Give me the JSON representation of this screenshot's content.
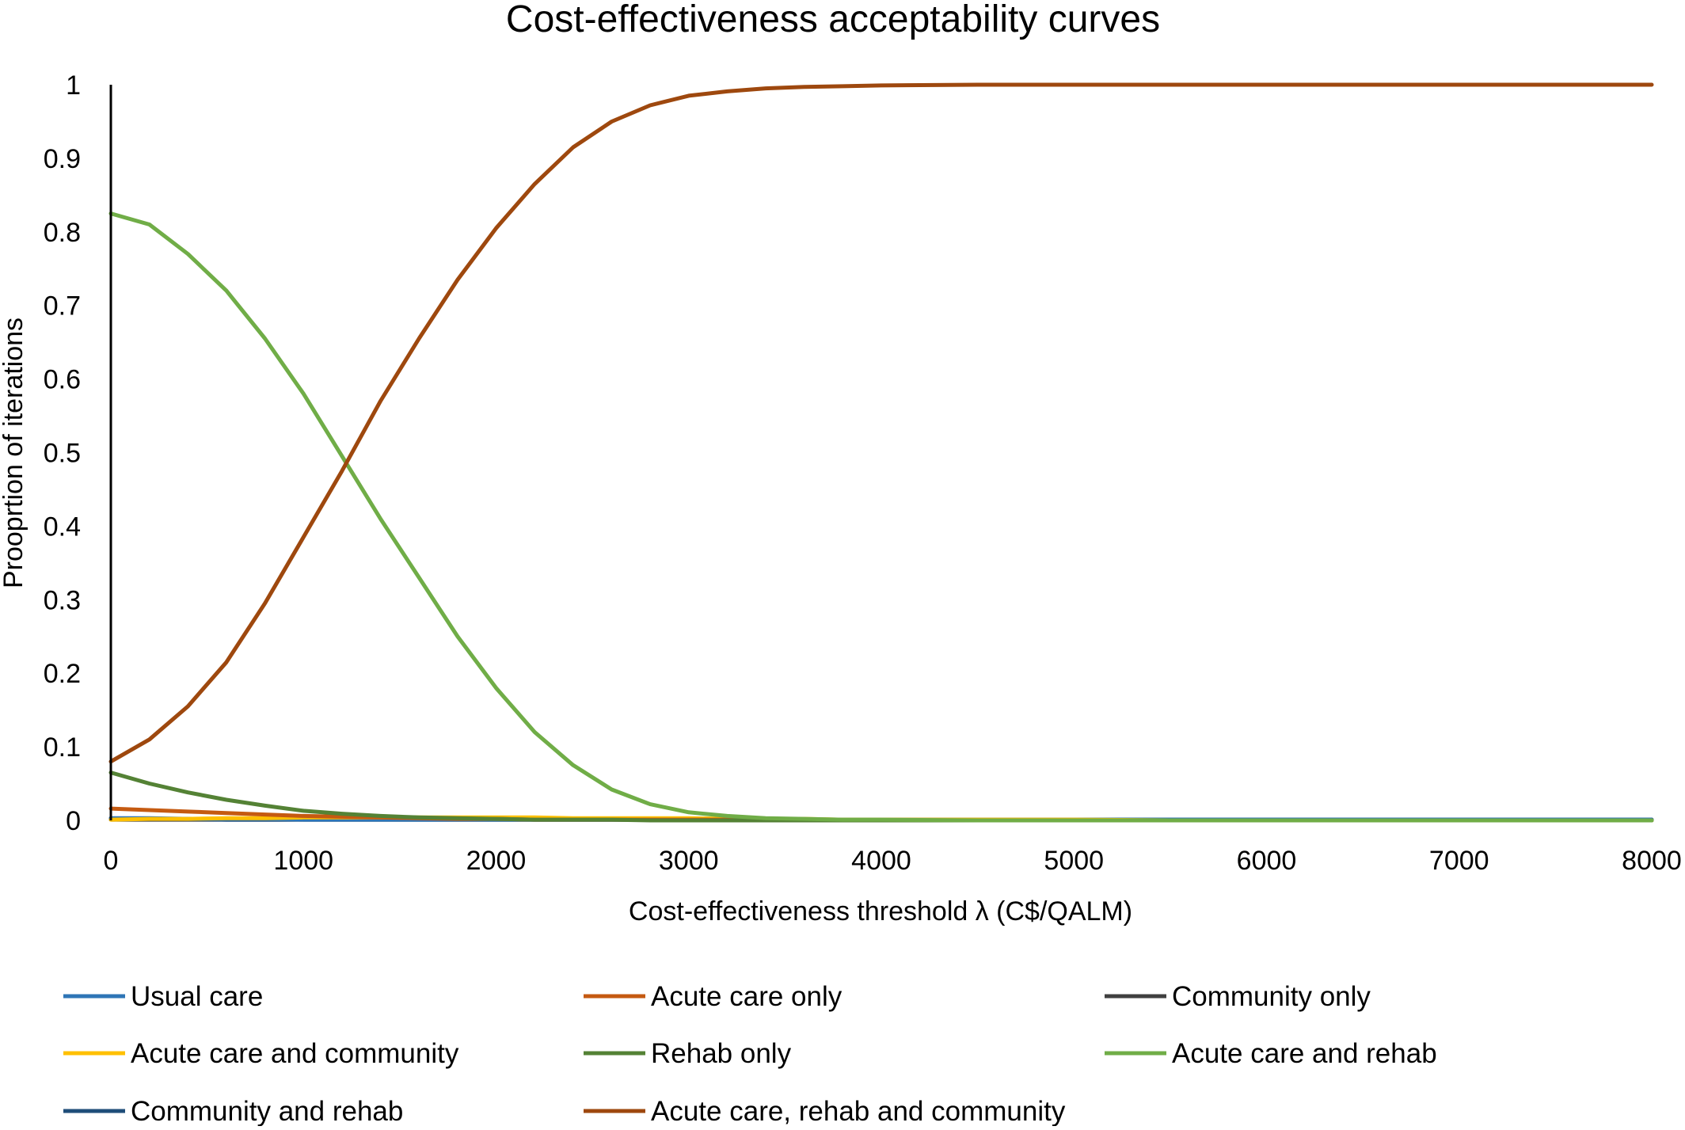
{
  "chart_data": {
    "type": "line",
    "title": "Cost-effectiveness acceptability curves",
    "xlabel": "Cost-effectiveness threshold λ (C$/QALM)",
    "ylabel": "Prooprtion of iterations",
    "xlim": [
      0,
      8000
    ],
    "ylim": [
      0,
      1
    ],
    "x_ticks": [
      "0",
      "1000",
      "2000",
      "3000",
      "4000",
      "5000",
      "6000",
      "7000",
      "8000"
    ],
    "y_ticks": [
      "0",
      "0.1",
      "0.2",
      "0.3",
      "0.4",
      "0.5",
      "0.6",
      "0.7",
      "0.8",
      "0.9",
      "1"
    ],
    "grid": false,
    "legend_position": "bottom",
    "x": [
      0,
      200,
      400,
      600,
      800,
      1000,
      1200,
      1400,
      1600,
      1800,
      2000,
      2200,
      2400,
      2600,
      2800,
      3000,
      3200,
      3400,
      3600,
      3800,
      4000,
      4500,
      5000,
      5500,
      6000,
      6500,
      7000,
      7500,
      8000
    ],
    "series": [
      {
        "name": "Usual care",
        "color": "#2E75B6",
        "values": [
          0.003,
          0.003,
          0.002,
          0.002,
          0.002,
          0.001,
          0.001,
          0.001,
          0.001,
          0.001,
          0.001,
          0.001,
          0.001,
          0.001,
          0.001,
          0.001,
          0.001,
          0.001,
          0.001,
          0.001,
          0.001,
          0.001,
          0.001,
          0.001,
          0.001,
          0.001,
          0.001,
          0.001,
          0.001
        ]
      },
      {
        "name": "Acute care only",
        "color": "#C55A11",
        "values": [
          0.016,
          0.014,
          0.012,
          0.01,
          0.008,
          0.006,
          0.005,
          0.004,
          0.003,
          0.002,
          0.002,
          0.001,
          0.001,
          0.001,
          0.001,
          0.001,
          0.001,
          0,
          0,
          0,
          0,
          0,
          0,
          0,
          0,
          0,
          0,
          0,
          0
        ]
      },
      {
        "name": "Community only",
        "color": "#404040",
        "values": [
          0.001,
          0.001,
          0.001,
          0.001,
          0.001,
          0.001,
          0.001,
          0.001,
          0.001,
          0.001,
          0.001,
          0.001,
          0.001,
          0.001,
          0.001,
          0.001,
          0.001,
          0.001,
          0.001,
          0.001,
          0.001,
          0.001,
          0.001,
          0.001,
          0.001,
          0.001,
          0.001,
          0.001,
          0.001
        ]
      },
      {
        "name": "Acute care and community",
        "color": "#FFC000",
        "values": [
          0.001,
          0.002,
          0.002,
          0.003,
          0.003,
          0.004,
          0.004,
          0.004,
          0.004,
          0.004,
          0.004,
          0.004,
          0.003,
          0.003,
          0.003,
          0.003,
          0.002,
          0.002,
          0.002,
          0.001,
          0.001,
          0.001,
          0.001,
          0,
          0,
          0,
          0,
          0,
          0
        ]
      },
      {
        "name": "Rehab only",
        "color": "#548235",
        "values": [
          0.065,
          0.05,
          0.038,
          0.028,
          0.02,
          0.013,
          0.009,
          0.006,
          0.004,
          0.003,
          0.002,
          0.001,
          0.001,
          0.001,
          0,
          0,
          0,
          0,
          0,
          0,
          0,
          0,
          0,
          0,
          0,
          0,
          0,
          0,
          0
        ]
      },
      {
        "name": "Acute care and rehab",
        "color": "#70AD47",
        "values": [
          0.825,
          0.81,
          0.77,
          0.72,
          0.655,
          0.58,
          0.495,
          0.41,
          0.33,
          0.25,
          0.18,
          0.12,
          0.075,
          0.042,
          0.022,
          0.011,
          0.006,
          0.003,
          0.002,
          0.001,
          0.001,
          0,
          0,
          0,
          0,
          0,
          0,
          0,
          0
        ]
      },
      {
        "name": "Community and rehab",
        "color": "#1F4E79",
        "values": [
          0.002,
          0.002,
          0.002,
          0.001,
          0.001,
          0.001,
          0.001,
          0.001,
          0.001,
          0.001,
          0.001,
          0.001,
          0.001,
          0.001,
          0.001,
          0.001,
          0.001,
          0.001,
          0.001,
          0.001,
          0.001,
          0.001,
          0.001,
          0.001,
          0.001,
          0.001,
          0.001,
          0.001,
          0.001
        ]
      },
      {
        "name": "Acute care, rehab and community",
        "color": "#9E480E",
        "values": [
          0.08,
          0.11,
          0.155,
          0.215,
          0.295,
          0.385,
          0.475,
          0.57,
          0.655,
          0.735,
          0.805,
          0.865,
          0.915,
          0.95,
          0.972,
          0.985,
          0.991,
          0.995,
          0.997,
          0.998,
          0.999,
          1,
          1,
          1,
          1,
          1,
          1,
          1,
          1
        ]
      }
    ]
  }
}
